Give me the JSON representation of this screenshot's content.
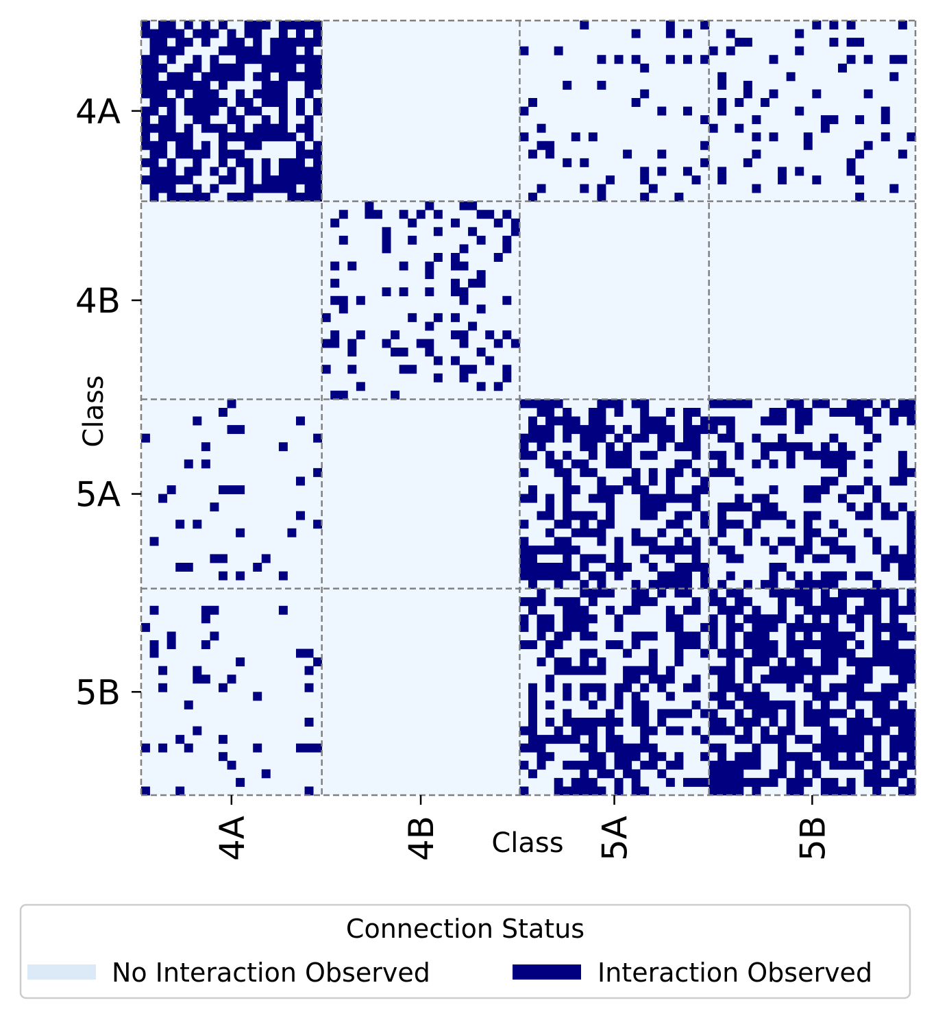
{
  "chart_data": {
    "type": "heatmap",
    "title": "",
    "xlabel": "Class",
    "ylabel": "Class",
    "classes": [
      "4A",
      "4B",
      "5A",
      "5B"
    ],
    "class_sizes": [
      21,
      23,
      22,
      24
    ],
    "x_tick_labels": [
      "4A",
      "4B",
      "5A",
      "5B"
    ],
    "y_tick_labels": [
      "4A",
      "4B",
      "5A",
      "5B"
    ],
    "grid": false,
    "block_separators": "dashed-gray",
    "colors": {
      "no_interaction": "#eef6ff",
      "interaction": "#000080",
      "separator": "#808080"
    },
    "block_densities": [
      [
        0.65,
        0.0,
        0.12,
        0.12
      ],
      [
        0.0,
        0.18,
        0.0,
        0.0
      ],
      [
        0.08,
        0.0,
        0.5,
        0.4
      ],
      [
        0.1,
        0.0,
        0.45,
        0.65
      ]
    ],
    "legend": {
      "title": "Connection Status",
      "placement": "bottom",
      "entries": [
        {
          "label": "No Interaction Observed",
          "color": "#dce9f7"
        },
        {
          "label": "Interaction Observed",
          "color": "#000080"
        }
      ]
    }
  }
}
